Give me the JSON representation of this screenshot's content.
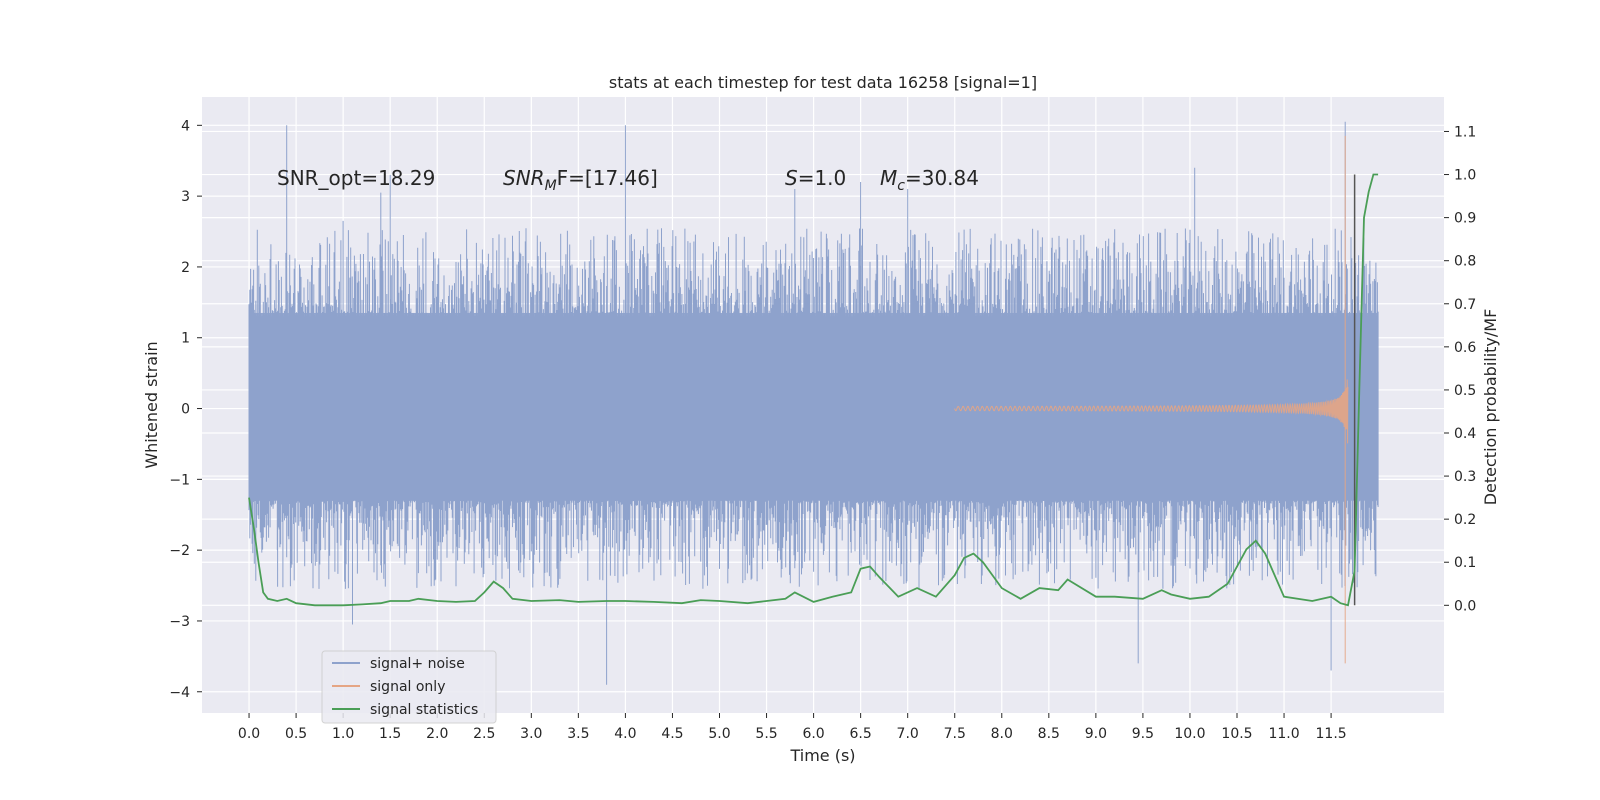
{
  "chart_data": {
    "type": "line",
    "title": "stats at each timestep for test data 16258 [signal=1]",
    "xlabel": "Time (s)",
    "ylabel": "Whitened strain",
    "y2label": "Detection probability/MF",
    "xlim": [
      -0.5,
      12.7
    ],
    "ylim": [
      -4.3,
      4.4
    ],
    "y2lim": [
      -0.25,
      1.18
    ],
    "xticks": [
      "0.0",
      "0.5",
      "1.0",
      "1.5",
      "2.0",
      "2.5",
      "3.0",
      "3.5",
      "4.0",
      "4.5",
      "5.0",
      "5.5",
      "6.0",
      "6.5",
      "7.0",
      "7.5",
      "8.0",
      "8.5",
      "9.0",
      "9.5",
      "10.0",
      "10.5",
      "11.0",
      "11.5"
    ],
    "yticks": [
      "4",
      "3",
      "2",
      "1",
      "0",
      "−1",
      "−2",
      "−3",
      "−4"
    ],
    "y2ticks": [
      "1.1",
      "1.0",
      "0.9",
      "0.8",
      "0.7",
      "0.6",
      "0.5",
      "0.4",
      "0.3",
      "0.2",
      "0.1",
      "0.0"
    ],
    "annotations": {
      "snr_opt": "SNR_opt=18.29",
      "snr_mf_base": "SNR",
      "snr_mf_sub": "M",
      "snr_mf_rest": "F=[17.46]",
      "s_sym": "S",
      "s_val": "=1.0",
      "mc_sym": "M",
      "mc_sub": "c",
      "mc_val": "=30.84"
    },
    "legend_position": "lower-left",
    "series": [
      {
        "name": "signal+ noise",
        "color": "#8ea2cc",
        "t_range": [
          0.0,
          12.0
        ],
        "band": [
          -1.3,
          1.35
        ],
        "spikes": [
          [
            0.4,
            4.0
          ],
          [
            0.3,
            -2.0
          ],
          [
            1.0,
            2.65
          ],
          [
            1.1,
            -3.05
          ],
          [
            1.4,
            3.05
          ],
          [
            1.5,
            3.3
          ],
          [
            3.8,
            -3.9
          ],
          [
            4.0,
            4.0
          ],
          [
            5.8,
            3.1
          ],
          [
            6.5,
            3.2
          ],
          [
            7.0,
            3.1
          ],
          [
            9.45,
            -3.6
          ],
          [
            10.05,
            3.4
          ],
          [
            11.5,
            -3.7
          ],
          [
            11.65,
            4.05
          ]
        ]
      },
      {
        "name": "signal only",
        "color": "#e5a584",
        "t_range": [
          7.5,
          11.68
        ],
        "peak": [
          11.65,
          3.85,
          -3.6
        ]
      },
      {
        "name": "signal statistics",
        "color": "#4a9e56",
        "x": [
          0.0,
          0.05,
          0.1,
          0.15,
          0.2,
          0.3,
          0.4,
          0.5,
          0.7,
          1.0,
          1.2,
          1.4,
          1.5,
          1.7,
          1.8,
          2.0,
          2.2,
          2.4,
          2.5,
          2.6,
          2.7,
          2.8,
          3.0,
          3.3,
          3.5,
          3.8,
          4.0,
          4.3,
          4.6,
          4.8,
          5.0,
          5.3,
          5.5,
          5.7,
          5.8,
          6.0,
          6.2,
          6.4,
          6.5,
          6.6,
          6.7,
          6.9,
          7.1,
          7.3,
          7.5,
          7.6,
          7.7,
          7.8,
          8.0,
          8.2,
          8.4,
          8.6,
          8.7,
          9.0,
          9.2,
          9.5,
          9.7,
          9.8,
          10.0,
          10.2,
          10.4,
          10.6,
          10.7,
          10.8,
          11.0,
          11.3,
          11.5,
          11.6,
          11.68,
          11.75,
          11.8,
          11.85,
          11.9,
          11.95,
          12.0
        ],
        "values": [
          0.25,
          0.18,
          0.1,
          0.03,
          0.015,
          0.01,
          0.015,
          0.005,
          0.0,
          0.0,
          0.002,
          0.005,
          0.01,
          0.01,
          0.015,
          0.01,
          0.008,
          0.01,
          0.03,
          0.055,
          0.04,
          0.015,
          0.01,
          0.012,
          0.008,
          0.01,
          0.01,
          0.008,
          0.005,
          0.012,
          0.01,
          0.005,
          0.01,
          0.015,
          0.03,
          0.008,
          0.02,
          0.03,
          0.085,
          0.09,
          0.065,
          0.02,
          0.04,
          0.02,
          0.07,
          0.11,
          0.12,
          0.1,
          0.04,
          0.015,
          0.04,
          0.035,
          0.06,
          0.02,
          0.02,
          0.015,
          0.035,
          0.025,
          0.015,
          0.02,
          0.05,
          0.13,
          0.15,
          0.12,
          0.02,
          0.01,
          0.02,
          0.005,
          0.0,
          0.08,
          0.5,
          0.9,
          0.96,
          1.0,
          1.0
        ]
      }
    ],
    "vline": {
      "x": 11.75,
      "ymin": 0.0,
      "ymax": 1.0,
      "color": "#555555"
    }
  }
}
